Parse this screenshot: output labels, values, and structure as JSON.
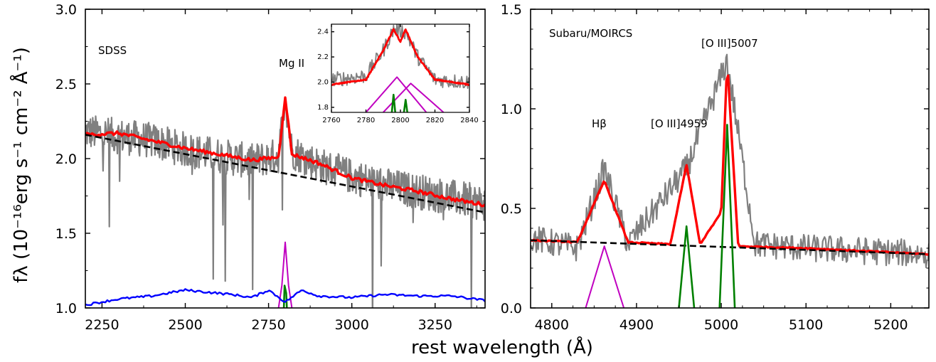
{
  "figure": {
    "ylabel": "fλ (10⁻¹⁶erg s⁻¹ cm⁻² Å⁻¹)",
    "xlabel": "rest wavelength (Å)",
    "colors": {
      "data": "#808080",
      "model": "#ff0000",
      "continuum": "#000000",
      "broad": "#c000c0",
      "narrow": "#008000",
      "error": "#0000ff"
    }
  },
  "chart_data": [
    {
      "type": "line",
      "panel": "left",
      "annotation": "SDSS",
      "line_label": "Mg II",
      "xlim": [
        2200,
        3400
      ],
      "ylim": [
        1.0,
        3.0
      ],
      "xticks": [
        2250,
        2500,
        2750,
        3000,
        3250
      ],
      "yticks": [
        "1.0",
        "1.5",
        "2.0",
        "2.5",
        "3.0"
      ],
      "series": [
        {
          "role": "data",
          "x": [
            2200,
            2300,
            2400,
            2500,
            2600,
            2700,
            2780,
            2800,
            2820,
            2900,
            3000,
            3100,
            3200,
            3300,
            3400
          ],
          "values": [
            2.18,
            2.15,
            2.12,
            2.06,
            2.02,
            1.98,
            2.02,
            2.42,
            2.05,
            1.96,
            1.88,
            1.82,
            1.78,
            1.74,
            1.7
          ]
        },
        {
          "role": "model",
          "x": [
            2200,
            2300,
            2400,
            2500,
            2600,
            2700,
            2780,
            2800,
            2820,
            2900,
            3000,
            3100,
            3200,
            3300,
            3400
          ],
          "values": [
            2.16,
            2.17,
            2.12,
            2.07,
            2.03,
            1.99,
            2.01,
            2.42,
            2.03,
            1.97,
            1.87,
            1.82,
            1.78,
            1.73,
            1.69
          ]
        },
        {
          "role": "continuum",
          "x": [
            2200,
            3400
          ],
          "values": [
            2.16,
            1.64
          ]
        },
        {
          "role": "broad",
          "x": [
            2780,
            2790,
            2800,
            2810,
            2820
          ],
          "values": [
            1.0,
            1.15,
            1.44,
            1.15,
            1.0
          ]
        },
        {
          "role": "narrow",
          "x": [
            2796,
            2798,
            2803,
            2805
          ],
          "values": [
            1.0,
            1.15,
            1.1,
            1.0
          ]
        },
        {
          "role": "error",
          "x": [
            2200,
            2300,
            2400,
            2500,
            2640,
            2700,
            2750,
            2800,
            2850,
            2900,
            3000,
            3100,
            3200,
            3300,
            3400
          ],
          "values": [
            1.02,
            1.06,
            1.08,
            1.12,
            1.09,
            1.07,
            1.12,
            1.04,
            1.12,
            1.08,
            1.07,
            1.09,
            1.08,
            1.08,
            1.05
          ]
        }
      ],
      "inset": {
        "xlim": [
          2760,
          2840
        ],
        "ylim": [
          1.76,
          2.46
        ],
        "xticks": [
          2760,
          2780,
          2800,
          2820,
          2840
        ],
        "yticks": [
          "1.8",
          "2.0",
          "2.2",
          "2.4"
        ],
        "series": [
          {
            "role": "data",
            "x": [
              2760,
              2780,
              2790,
              2796,
              2803,
              2810,
              2820,
              2840
            ],
            "values": [
              2.02,
              2.05,
              2.25,
              2.42,
              2.4,
              2.2,
              2.02,
              2.0
            ]
          },
          {
            "role": "model",
            "x": [
              2760,
              2780,
              2790,
              2796,
              2800,
              2803,
              2810,
              2820,
              2840
            ],
            "values": [
              1.98,
              2.02,
              2.25,
              2.42,
              2.32,
              2.42,
              2.2,
              2.02,
              1.98
            ]
          },
          {
            "role": "broad",
            "x": [
              2780,
              2798,
              2815
            ],
            "values": [
              1.76,
              2.04,
              1.76
            ]
          },
          {
            "role": "broad",
            "x": [
              2790,
              2806,
              2825
            ],
            "values": [
              1.76,
              1.99,
              1.76
            ]
          },
          {
            "role": "narrow",
            "x": [
              2795,
              2796,
              2797
            ],
            "values": [
              1.76,
              1.9,
              1.76
            ]
          },
          {
            "role": "narrow",
            "x": [
              2802,
              2803,
              2804
            ],
            "values": [
              1.76,
              1.86,
              1.76
            ]
          }
        ]
      }
    },
    {
      "type": "line",
      "panel": "right",
      "annotation": "Subaru/MOIRCS",
      "line_labels": [
        "Hβ",
        "[O III]4959",
        "[O III]5007"
      ],
      "xlim": [
        4775,
        5245
      ],
      "ylim": [
        0.0,
        1.5
      ],
      "xticks": [
        4800,
        4900,
        5000,
        5100,
        5200
      ],
      "yticks": [
        "0.0",
        "0.5",
        "1.0",
        "1.5"
      ],
      "series": [
        {
          "role": "data",
          "x": [
            4775,
            4830,
            4862,
            4890,
            4959,
            5007,
            5040,
            5100,
            5150,
            5200,
            5245
          ],
          "values": [
            0.35,
            0.3,
            0.7,
            0.32,
            0.7,
            1.24,
            0.32,
            0.3,
            0.29,
            0.28,
            0.27
          ]
        },
        {
          "role": "model",
          "x": [
            4775,
            4830,
            4862,
            4890,
            4940,
            4959,
            4975,
            5000,
            5007,
            5020,
            5100,
            5245
          ],
          "values": [
            0.34,
            0.33,
            0.64,
            0.33,
            0.32,
            0.72,
            0.32,
            0.48,
            1.24,
            0.31,
            0.3,
            0.27
          ]
        },
        {
          "role": "continuum",
          "x": [
            4775,
            5245
          ],
          "values": [
            0.34,
            0.27
          ]
        },
        {
          "role": "broad",
          "x": [
            4840,
            4862,
            4885
          ],
          "values": [
            0.0,
            0.31,
            0.0
          ]
        },
        {
          "role": "narrow",
          "x": [
            4950,
            4959,
            4968
          ],
          "values": [
            0.0,
            0.41,
            0.0
          ]
        },
        {
          "role": "narrow",
          "x": [
            4998,
            5007,
            5016
          ],
          "values": [
            0.0,
            0.92,
            0.0
          ]
        }
      ]
    }
  ]
}
